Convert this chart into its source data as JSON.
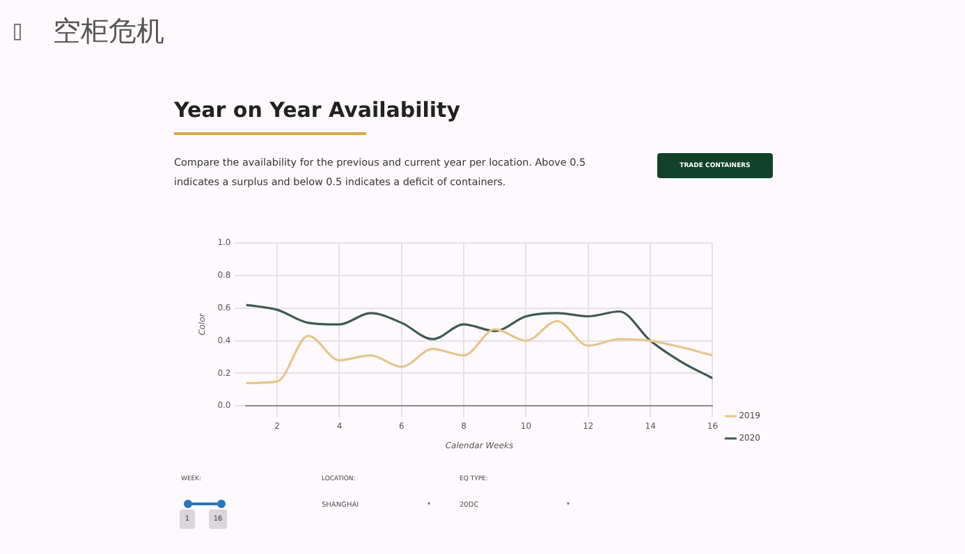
{
  "chart_data": {
    "type": "line",
    "title": "Year on Year Availability",
    "subtitle": "Compare the availability for the previous and current year per location. Above 0.5 indicates a surplus and below 0.5 indicates a deficit of containers.",
    "xlabel": "Calendar Weeks",
    "ylabel": "Color",
    "x": [
      1,
      2,
      3,
      4,
      5,
      6,
      7,
      8,
      9,
      10,
      11,
      12,
      13,
      14,
      15,
      16
    ],
    "series": [
      {
        "name": "2019",
        "color": "#e8c48a",
        "values": [
          0.14,
          0.15,
          0.43,
          0.28,
          0.31,
          0.24,
          0.35,
          0.31,
          0.47,
          0.4,
          0.52,
          0.37,
          0.41,
          0.4,
          0.36,
          0.31
        ]
      },
      {
        "name": "2020",
        "color": "#3d5a50",
        "values": [
          0.62,
          0.59,
          0.51,
          0.5,
          0.57,
          0.51,
          0.41,
          0.5,
          0.46,
          0.55,
          0.57,
          0.55,
          0.58,
          0.4,
          0.27,
          0.17
        ]
      }
    ],
    "xlim": [
      1,
      16
    ],
    "xticks": [
      2,
      4,
      6,
      8,
      10,
      12,
      14,
      16
    ],
    "ylim": [
      0,
      1
    ],
    "yticks": [
      {
        "value": 0,
        "label": "0.0"
      },
      {
        "value": 0.2,
        "label": "0.2"
      },
      {
        "value": 0.4,
        "label": "0.4"
      },
      {
        "value": 0.6,
        "label": "0.6"
      },
      {
        "value": 0.8,
        "label": "0.8"
      },
      {
        "value": 1,
        "label": "1.0"
      }
    ],
    "grid": true,
    "legend": "right",
    "marker": "none",
    "line_style": "solid",
    "annotations": [
      "空柜危机",
      "TRADE CONTAINERS",
      "WEEK:",
      "1",
      "16",
      "LOCATION:",
      "SHANGHAI",
      "EQ TYPE:",
      "20DC"
    ]
  }
}
